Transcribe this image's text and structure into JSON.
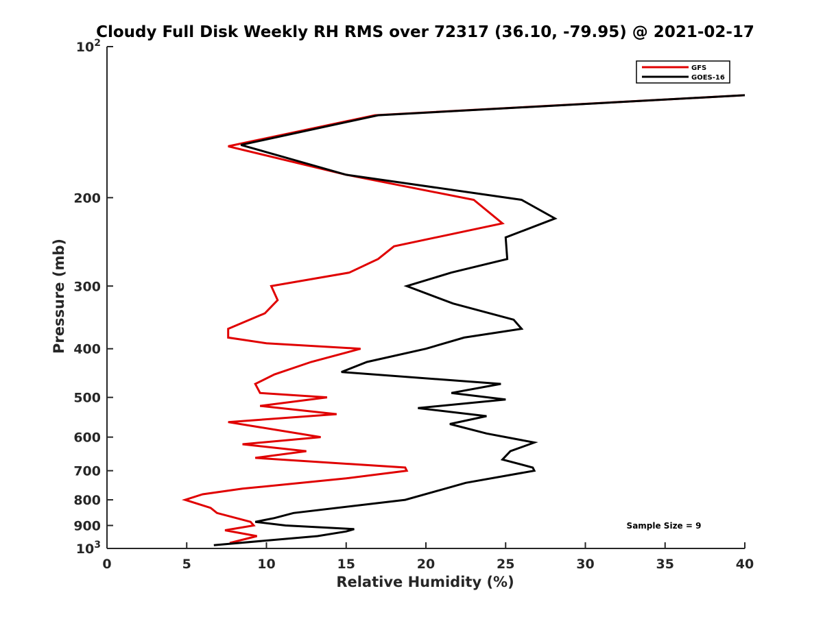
{
  "chart_data": {
    "type": "line",
    "title": "Cloudy Full Disk Weekly RH RMS over 72317 (36.10, -79.95) @ 2021-02-17",
    "xlabel": "Relative Humidity (%)",
    "ylabel": "Pressure (mb)",
    "xlim": [
      0,
      40
    ],
    "ylim": [
      100,
      1000
    ],
    "yscale": "log",
    "y_reversed": true,
    "grid": false,
    "legend_position": "top-right",
    "x_ticks": [
      "0",
      "5",
      "10",
      "15",
      "20",
      "25",
      "30",
      "35",
      "40"
    ],
    "y_ticks": [
      {
        "value": 100,
        "base": "10",
        "exp": "2"
      },
      {
        "value": 200,
        "label": "200"
      },
      {
        "value": 300,
        "label": "300"
      },
      {
        "value": 400,
        "label": "400"
      },
      {
        "value": 500,
        "label": "500"
      },
      {
        "value": 600,
        "label": "600"
      },
      {
        "value": 700,
        "label": "700"
      },
      {
        "value": 800,
        "label": "800"
      },
      {
        "value": 900,
        "label": "900"
      },
      {
        "value": 1000,
        "base": "10",
        "exp": "3"
      }
    ],
    "annotation": "Sample Size = 9",
    "series": [
      {
        "name": "GFS",
        "color": "#e00000",
        "points": [
          [
            40.0,
            125
          ],
          [
            16.8,
            137
          ],
          [
            7.6,
            158
          ],
          [
            15.0,
            180
          ],
          [
            23.0,
            202
          ],
          [
            24.8,
            225
          ],
          [
            18.0,
            250
          ],
          [
            17.0,
            265
          ],
          [
            15.2,
            282
          ],
          [
            10.3,
            300
          ],
          [
            10.7,
            320
          ],
          [
            9.9,
            340
          ],
          [
            7.6,
            365
          ],
          [
            7.6,
            380
          ],
          [
            10.0,
            390
          ],
          [
            15.9,
            400
          ],
          [
            12.8,
            425
          ],
          [
            10.5,
            450
          ],
          [
            9.3,
            470
          ],
          [
            9.6,
            490
          ],
          [
            13.8,
            500
          ],
          [
            9.6,
            520
          ],
          [
            14.4,
            540
          ],
          [
            7.6,
            560
          ],
          [
            13.4,
            600
          ],
          [
            8.5,
            620
          ],
          [
            12.5,
            640
          ],
          [
            9.3,
            660
          ],
          [
            18.7,
            690
          ],
          [
            18.8,
            700
          ],
          [
            15.0,
            725
          ],
          [
            8.5,
            760
          ],
          [
            6.0,
            780
          ],
          [
            4.9,
            800
          ],
          [
            6.5,
            830
          ],
          [
            6.9,
            850
          ],
          [
            9.0,
            885
          ],
          [
            9.2,
            900
          ],
          [
            7.4,
            920
          ],
          [
            9.4,
            945
          ],
          [
            7.7,
            975
          ]
        ]
      },
      {
        "name": "GOES-16",
        "color": "#000000",
        "points": [
          [
            40.0,
            125
          ],
          [
            17.0,
            137
          ],
          [
            8.4,
            157
          ],
          [
            15.0,
            180
          ],
          [
            26.0,
            202
          ],
          [
            28.1,
            220
          ],
          [
            25.0,
            240
          ],
          [
            25.1,
            265
          ],
          [
            21.6,
            282
          ],
          [
            18.8,
            300
          ],
          [
            21.7,
            325
          ],
          [
            25.5,
            350
          ],
          [
            26.0,
            365
          ],
          [
            22.4,
            380
          ],
          [
            20.0,
            400
          ],
          [
            16.3,
            425
          ],
          [
            14.7,
            445
          ],
          [
            24.7,
            470
          ],
          [
            21.6,
            490
          ],
          [
            25.0,
            505
          ],
          [
            19.5,
            525
          ],
          [
            23.8,
            545
          ],
          [
            21.5,
            565
          ],
          [
            23.8,
            590
          ],
          [
            26.8,
            615
          ],
          [
            25.3,
            640
          ],
          [
            24.8,
            665
          ],
          [
            26.7,
            690
          ],
          [
            26.8,
            700
          ],
          [
            22.5,
            740
          ],
          [
            20.9,
            765
          ],
          [
            18.7,
            800
          ],
          [
            11.7,
            850
          ],
          [
            10.5,
            870
          ],
          [
            9.3,
            885
          ],
          [
            11.2,
            900
          ],
          [
            15.5,
            915
          ],
          [
            15.0,
            925
          ],
          [
            13.2,
            945
          ],
          [
            6.7,
            985
          ]
        ]
      }
    ]
  }
}
